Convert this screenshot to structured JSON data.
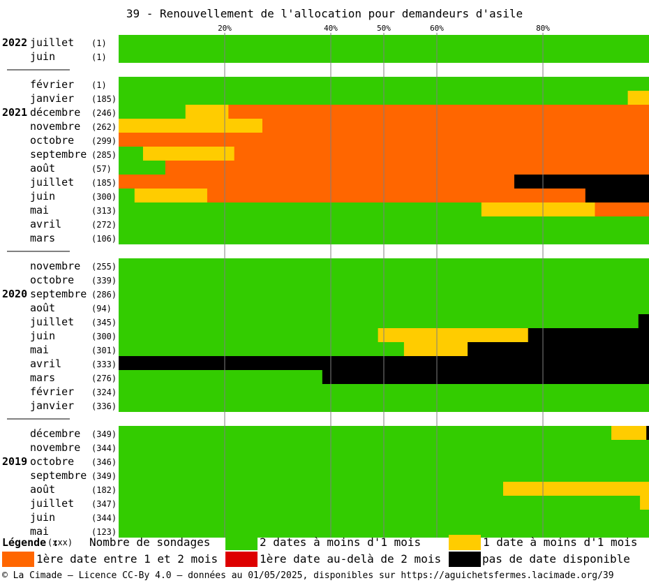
{
  "chart_data": {
    "type": "bar",
    "orientation": "horizontal-stacked-100",
    "title": "39 - Renouvellement de l'allocation pour demandeurs d'asile",
    "x_ticks": [
      "20%",
      "40%",
      "50%",
      "60%",
      "80%"
    ],
    "xlim": [
      0,
      100
    ],
    "colors": {
      "green": "#33cc00",
      "yellow": "#ffcc00",
      "orange": "#ff6600",
      "red": "#dd0000",
      "black": "#000000"
    },
    "series_order": [
      "green",
      "yellow",
      "orange",
      "red",
      "black"
    ],
    "groups": [
      {
        "year": "2022",
        "rows": [
          {
            "month": "juillet",
            "n": "(1)",
            "green": 100,
            "yellow": 0,
            "orange": 0,
            "red": 0,
            "black": 0
          },
          {
            "month": "juin",
            "n": "(1)",
            "green": 100,
            "yellow": 0,
            "orange": 0,
            "red": 0,
            "black": 0
          }
        ]
      },
      {
        "year": "2021",
        "rows": [
          {
            "month": "février",
            "n": "(1)",
            "green": 100,
            "yellow": 0,
            "orange": 0,
            "red": 0,
            "black": 0
          },
          {
            "month": "janvier",
            "n": "(185)",
            "green": 96,
            "yellow": 4,
            "orange": 0,
            "red": 0,
            "black": 0
          },
          {
            "month": "décembre",
            "n": "(246)",
            "green": 12.6,
            "yellow": 8.1,
            "orange": 79.3,
            "red": 0,
            "black": 0
          },
          {
            "month": "novembre",
            "n": "(262)",
            "green": 0,
            "yellow": 27.1,
            "orange": 72.9,
            "red": 0,
            "black": 0
          },
          {
            "month": "octobre",
            "n": "(299)",
            "green": 0,
            "yellow": 0,
            "orange": 100,
            "red": 0,
            "black": 0
          },
          {
            "month": "septembre",
            "n": "(285)",
            "green": 4.6,
            "yellow": 17.2,
            "orange": 78.2,
            "red": 0,
            "black": 0
          },
          {
            "month": "août",
            "n": "(57)",
            "green": 8.8,
            "yellow": 0,
            "orange": 91.2,
            "red": 0,
            "black": 0
          },
          {
            "month": "juillet",
            "n": "(185)",
            "green": 0,
            "yellow": 0,
            "orange": 74.6,
            "red": 0,
            "black": 25.4
          },
          {
            "month": "juin",
            "n": "(300)",
            "green": 3,
            "yellow": 13.7,
            "orange": 71.3,
            "red": 0,
            "black": 12
          },
          {
            "month": "mai",
            "n": "(313)",
            "green": 68.4,
            "yellow": 21.4,
            "orange": 10.2,
            "red": 0,
            "black": 0
          },
          {
            "month": "avril",
            "n": "(272)",
            "green": 100,
            "yellow": 0,
            "orange": 0,
            "red": 0,
            "black": 0
          },
          {
            "month": "mars",
            "n": "(106)",
            "green": 100,
            "yellow": 0,
            "orange": 0,
            "red": 0,
            "black": 0
          }
        ]
      },
      {
        "year": "2020",
        "rows": [
          {
            "month": "novembre",
            "n": "(255)",
            "green": 100,
            "yellow": 0,
            "orange": 0,
            "red": 0,
            "black": 0
          },
          {
            "month": "octobre",
            "n": "(339)",
            "green": 100,
            "yellow": 0,
            "orange": 0,
            "red": 0,
            "black": 0
          },
          {
            "month": "septembre",
            "n": "(286)",
            "green": 100,
            "yellow": 0,
            "orange": 0,
            "red": 0,
            "black": 0
          },
          {
            "month": "août",
            "n": "(94)",
            "green": 100,
            "yellow": 0,
            "orange": 0,
            "red": 0,
            "black": 0
          },
          {
            "month": "juillet",
            "n": "(345)",
            "green": 98,
            "yellow": 0,
            "orange": 0,
            "red": 0,
            "black": 2
          },
          {
            "month": "juin",
            "n": "(300)",
            "green": 48.9,
            "yellow": 28.3,
            "orange": 0,
            "red": 0,
            "black": 22.8
          },
          {
            "month": "mai",
            "n": "(301)",
            "green": 53.8,
            "yellow": 12,
            "orange": 0,
            "red": 0,
            "black": 34.2
          },
          {
            "month": "avril",
            "n": "(333)",
            "green": 0,
            "yellow": 0,
            "orange": 0,
            "red": 0,
            "black": 100
          },
          {
            "month": "mars",
            "n": "(276)",
            "green": 38.4,
            "yellow": 0,
            "orange": 0,
            "red": 0,
            "black": 61.6
          },
          {
            "month": "février",
            "n": "(324)",
            "green": 100,
            "yellow": 0,
            "orange": 0,
            "red": 0,
            "black": 0
          },
          {
            "month": "janvier",
            "n": "(336)",
            "green": 100,
            "yellow": 0,
            "orange": 0,
            "red": 0,
            "black": 0
          }
        ]
      },
      {
        "year": "2019",
        "rows": [
          {
            "month": "décembre",
            "n": "(349)",
            "green": 92.9,
            "yellow": 6.6,
            "orange": 0,
            "red": 0,
            "black": 0.5
          },
          {
            "month": "novembre",
            "n": "(344)",
            "green": 100,
            "yellow": 0,
            "orange": 0,
            "red": 0,
            "black": 0
          },
          {
            "month": "octobre",
            "n": "(346)",
            "green": 100,
            "yellow": 0,
            "orange": 0,
            "red": 0,
            "black": 0
          },
          {
            "month": "septembre",
            "n": "(349)",
            "green": 100,
            "yellow": 0,
            "orange": 0,
            "red": 0,
            "black": 0
          },
          {
            "month": "août",
            "n": "(182)",
            "green": 72.5,
            "yellow": 27.5,
            "orange": 0,
            "red": 0,
            "black": 0
          },
          {
            "month": "juillet",
            "n": "(347)",
            "green": 98.3,
            "yellow": 1.7,
            "orange": 0,
            "red": 0,
            "black": 0
          },
          {
            "month": "juin",
            "n": "(344)",
            "green": 100,
            "yellow": 0,
            "orange": 0,
            "red": 0,
            "black": 0
          },
          {
            "month": "mai",
            "n": "(123)",
            "green": 100,
            "yellow": 0,
            "orange": 0,
            "red": 0,
            "black": 0
          }
        ]
      }
    ]
  },
  "legend": {
    "title": "Légende :",
    "count_symbol": "(xxx)",
    "count_label": "Nombre de sondages",
    "items": [
      {
        "key": "green",
        "label": "2 dates à moins d'1 mois"
      },
      {
        "key": "yellow",
        "label": "1 date à moins d'1 mois"
      },
      {
        "key": "orange",
        "label": "1ère date entre 1 et 2 mois"
      },
      {
        "key": "red",
        "label": "1ère date au-delà de 2 mois"
      },
      {
        "key": "black",
        "label": "pas de date disponible"
      }
    ]
  },
  "footer": "© La Cimade – Licence CC-By 4.0 – données au 01/05/2025, disponibles sur https://aguichetsfermes.lacimade.org/39"
}
